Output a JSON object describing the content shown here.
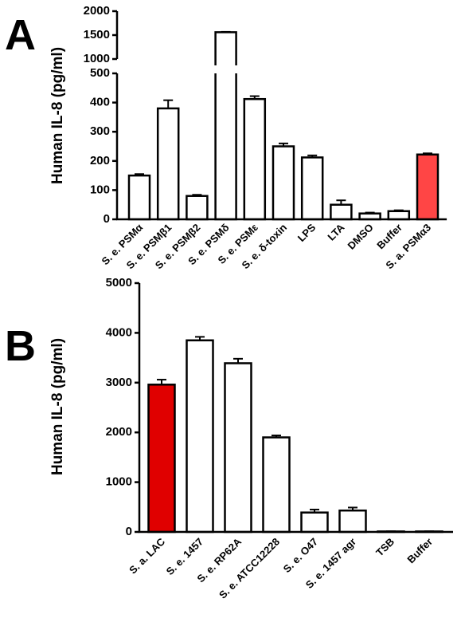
{
  "chart_data": [
    {
      "type": "bar",
      "panel_label": "A",
      "ylabel": "Human IL-8 (pg/ml)",
      "categories": [
        "S. e. PSMα",
        "S. e. PSMβ1",
        "S. e. PSMβ2",
        "S. e. PSMδ",
        "S. e. PSMε",
        "S. e. δ-toxin",
        "LPS",
        "LTA",
        "DMSO",
        "Buffer",
        "S. a. PSMα3"
      ],
      "values": [
        150,
        380,
        80,
        1560,
        412,
        250,
        212,
        50,
        20,
        28,
        222
      ],
      "errors": [
        5,
        28,
        4,
        8,
        10,
        10,
        7,
        15,
        3,
        3,
        4
      ],
      "colors": [
        "#ffffff",
        "#ffffff",
        "#ffffff",
        "#ffffff",
        "#ffffff",
        "#ffffff",
        "#ffffff",
        "#ffffff",
        "#ffffff",
        "#ffffff",
        "#ff4545"
      ],
      "ylim": [
        0,
        2000
      ],
      "axis_break": [
        500,
        1000
      ],
      "yticks": [
        0,
        100,
        200,
        300,
        400,
        500,
        1000,
        1500,
        2000
      ]
    },
    {
      "type": "bar",
      "panel_label": "B",
      "ylabel": "Human IL-8 (pg/ml)",
      "categories": [
        "S. a. LAC",
        "S. e. 1457",
        "S. e. RP62A",
        "S. e. ATCC12228",
        "S. e. O47",
        "S. e. 1457 agr",
        "TSB",
        "Buffer"
      ],
      "values": [
        2960,
        3850,
        3390,
        1900,
        390,
        430,
        10,
        10
      ],
      "errors": [
        100,
        70,
        90,
        40,
        60,
        60,
        5,
        5
      ],
      "colors": [
        "#e00000",
        "#ffffff",
        "#ffffff",
        "#ffffff",
        "#ffffff",
        "#ffffff",
        "#ffffff",
        "#ffffff"
      ],
      "ylim": [
        0,
        5000
      ],
      "yticks": [
        0,
        1000,
        2000,
        3000,
        4000,
        5000
      ]
    }
  ]
}
